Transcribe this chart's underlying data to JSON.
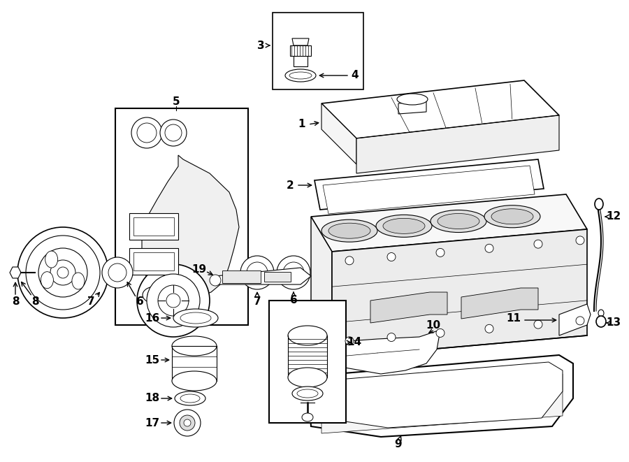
{
  "bg_color": "#ffffff",
  "lc": "#000000",
  "lw": 0.8,
  "lw2": 1.2,
  "figsize": [
    9.0,
    6.61
  ],
  "dpi": 100
}
